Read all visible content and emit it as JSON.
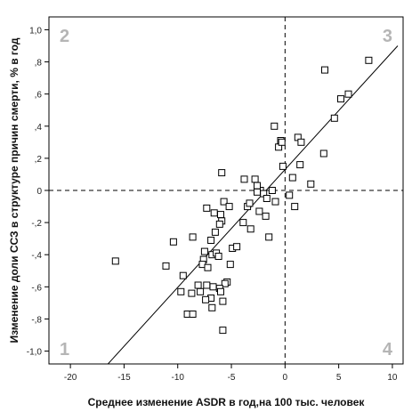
{
  "chart_data": {
    "type": "scatter",
    "title": "",
    "xlabel": "Среднее изменение ASDR в год,на 100 тыс. человек",
    "ylabel": "Изменение доли ССЗ в структуре причин смерти, % в год",
    "xlim": [
      -22,
      11
    ],
    "ylim": [
      -1.08,
      1.08
    ],
    "x_ticks": [
      -20,
      -15,
      -10,
      -5,
      0,
      5,
      10
    ],
    "x_tick_labels": [
      "-20",
      "-15",
      "-10",
      "-5",
      "0",
      "5",
      "10"
    ],
    "y_ticks": [
      1.0,
      0.8,
      0.6,
      0.4,
      0.2,
      0,
      -0.2,
      -0.4,
      -0.6,
      -0.8,
      -1.0
    ],
    "y_tick_labels": [
      "1,0",
      ",8",
      ",6",
      ",4",
      ",2",
      "0",
      "-,2",
      "-,4",
      "-,6",
      "-,8",
      "-1,0"
    ],
    "reference_lines": {
      "x": 0,
      "y": 0,
      "style": "dashed"
    },
    "regression_line": {
      "x": [
        -16.5,
        10.5
      ],
      "y": [
        -1.08,
        0.9
      ]
    },
    "quadrant_labels": [
      {
        "text": "2",
        "quadrant": "top-left"
      },
      {
        "text": "3",
        "quadrant": "top-right"
      },
      {
        "text": "1",
        "quadrant": "bottom-left"
      },
      {
        "text": "4",
        "quadrant": "bottom-right"
      }
    ],
    "grid": false,
    "legend": "none",
    "marker": "open-square",
    "points": [
      {
        "x": 7.8,
        "y": 0.81
      },
      {
        "x": 3.7,
        "y": 0.75
      },
      {
        "x": 5.9,
        "y": 0.6
      },
      {
        "x": 5.2,
        "y": 0.57
      },
      {
        "x": 4.6,
        "y": 0.45
      },
      {
        "x": 1.2,
        "y": 0.33
      },
      {
        "x": 1.5,
        "y": 0.3
      },
      {
        "x": -1.0,
        "y": 0.4
      },
      {
        "x": -0.4,
        "y": 0.31
      },
      {
        "x": -0.6,
        "y": 0.27
      },
      {
        "x": -0.3,
        "y": 0.3
      },
      {
        "x": 3.6,
        "y": 0.23
      },
      {
        "x": 1.4,
        "y": 0.16
      },
      {
        "x": -0.2,
        "y": 0.15
      },
      {
        "x": 0.7,
        "y": 0.08
      },
      {
        "x": 2.4,
        "y": 0.04
      },
      {
        "x": -3.8,
        "y": 0.07
      },
      {
        "x": -2.8,
        "y": 0.07
      },
      {
        "x": -5.9,
        "y": 0.11
      },
      {
        "x": -1.2,
        "y": 0.0
      },
      {
        "x": -2.3,
        "y": 0.0
      },
      {
        "x": -2.6,
        "y": -0.01
      },
      {
        "x": -2.0,
        "y": -0.02
      },
      {
        "x": -1.7,
        "y": -0.05
      },
      {
        "x": -2.6,
        "y": 0.03
      },
      {
        "x": 0.4,
        "y": -0.03
      },
      {
        "x": -0.9,
        "y": -0.07
      },
      {
        "x": -3.5,
        "y": -0.1
      },
      {
        "x": -3.3,
        "y": -0.08
      },
      {
        "x": -5.7,
        "y": -0.07
      },
      {
        "x": 0.9,
        "y": -0.1
      },
      {
        "x": -2.4,
        "y": -0.13
      },
      {
        "x": -1.8,
        "y": -0.16
      },
      {
        "x": -5.2,
        "y": -0.1
      },
      {
        "x": -7.3,
        "y": -0.11
      },
      {
        "x": -6.0,
        "y": -0.15
      },
      {
        "x": -6.6,
        "y": -0.14
      },
      {
        "x": -3.9,
        "y": -0.2
      },
      {
        "x": -5.9,
        "y": -0.19
      },
      {
        "x": -6.1,
        "y": -0.21
      },
      {
        "x": -3.2,
        "y": -0.24
      },
      {
        "x": -6.5,
        "y": -0.26
      },
      {
        "x": -1.5,
        "y": -0.29
      },
      {
        "x": -10.4,
        "y": -0.32
      },
      {
        "x": -8.6,
        "y": -0.29
      },
      {
        "x": -6.9,
        "y": -0.31
      },
      {
        "x": -4.9,
        "y": -0.36
      },
      {
        "x": -4.5,
        "y": -0.35
      },
      {
        "x": -7.5,
        "y": -0.38
      },
      {
        "x": -6.8,
        "y": -0.4
      },
      {
        "x": -6.4,
        "y": -0.39
      },
      {
        "x": -6.2,
        "y": -0.41
      },
      {
        "x": -7.6,
        "y": -0.43
      },
      {
        "x": -15.8,
        "y": -0.44
      },
      {
        "x": -7.7,
        "y": -0.46
      },
      {
        "x": -5.1,
        "y": -0.46
      },
      {
        "x": -7.2,
        "y": -0.48
      },
      {
        "x": -11.1,
        "y": -0.47
      },
      {
        "x": -9.5,
        "y": -0.53
      },
      {
        "x": -5.4,
        "y": -0.57
      },
      {
        "x": -5.6,
        "y": -0.58
      },
      {
        "x": -8.1,
        "y": -0.59
      },
      {
        "x": -7.3,
        "y": -0.59
      },
      {
        "x": -6.7,
        "y": -0.6
      },
      {
        "x": -6.1,
        "y": -0.61
      },
      {
        "x": -6.0,
        "y": -0.63
      },
      {
        "x": -7.9,
        "y": -0.63
      },
      {
        "x": -9.7,
        "y": -0.63
      },
      {
        "x": -8.7,
        "y": -0.64
      },
      {
        "x": -6.9,
        "y": -0.67
      },
      {
        "x": -7.4,
        "y": -0.68
      },
      {
        "x": -5.8,
        "y": -0.69
      },
      {
        "x": -6.8,
        "y": -0.73
      },
      {
        "x": -9.1,
        "y": -0.77
      },
      {
        "x": -8.6,
        "y": -0.77
      },
      {
        "x": -5.8,
        "y": -0.87
      }
    ]
  }
}
